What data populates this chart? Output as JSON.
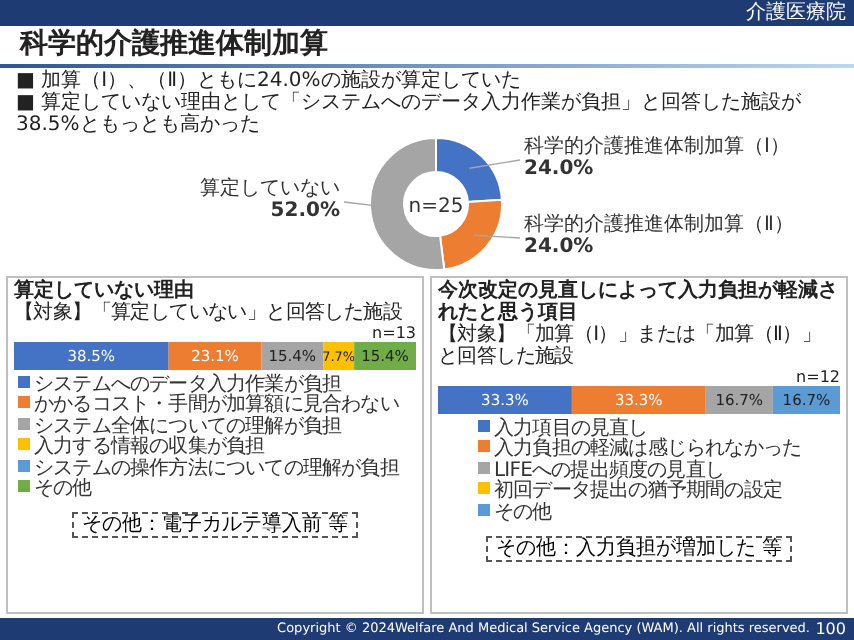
{
  "chart_data": [
    {
      "type": "donut",
      "title": "科学的介護推進体制加算",
      "annotations": [
        "介護医療院",
        "■ 加算（Ⅰ）、（Ⅱ）ともに24.0%の施設が算定していた",
        "■ 算定していない理由として「システムへのデータ入力作業が負担」と回答した施設が38.5%ともっとも高かった",
        "n=25",
        "Copyright © 2024Welfare And Medical Service Agency (WAM). All rights reserved.",
        "100"
      ],
      "categories": [
        "科学的介護推進体制加算（Ⅰ）",
        "科学的介護推進体制加算（Ⅱ）",
        "算定していない"
      ],
      "values": [
        24.0,
        24.0,
        52.0
      ],
      "value_labels": [
        "24.0%",
        "24.0%",
        "52.0%"
      ],
      "colors": [
        "#4472c4",
        "#ed7d31",
        "#a5a5a5"
      ]
    },
    {
      "type": "bar",
      "orientation": "horizontal",
      "stacked": true,
      "legend": "bottom",
      "title": "算定していない理由",
      "subtitle": "【対象】「算定していない」と回答した施設",
      "annotations": [
        "n=13",
        "その他：電子カルテ導入前 等"
      ],
      "categories": [
        null
      ],
      "series": [
        {
          "name": "システムへのデータ入力作業が負担",
          "color": "#4472c4",
          "values": [
            38.5
          ],
          "value_labels": [
            "38.5%"
          ]
        },
        {
          "name": "かかるコスト・手間が加算額に見合わない",
          "color": "#ed7d31",
          "values": [
            23.1
          ],
          "value_labels": [
            "23.1%"
          ]
        },
        {
          "name": "システム全体についての理解が負担",
          "color": "#a5a5a5",
          "values": [
            15.4
          ],
          "value_labels": [
            "15.4%"
          ]
        },
        {
          "name": "入力する情報の収集が負担",
          "color": "#ffc000",
          "values": [
            7.7
          ],
          "value_labels": [
            "7.7%"
          ]
        },
        {
          "name": "システムの操作方法についての理解が負担",
          "color": "#5b9bd5",
          "values": [
            0
          ],
          "value_labels": [
            null
          ]
        },
        {
          "name": "その他",
          "color": "#70ad47",
          "values": [
            15.4
          ],
          "value_labels": [
            "15.4%"
          ]
        }
      ]
    },
    {
      "type": "bar",
      "orientation": "horizontal",
      "stacked": true,
      "legend": "bottom",
      "title": "今次改定の見直しによって入力負担が軽減されたと思う項目",
      "subtitle": "【対象】「加算（Ⅰ）」または「加算（Ⅱ）」と回答した施設",
      "annotations": [
        "n=12",
        "その他：入力負担が増加した 等"
      ],
      "categories": [
        null
      ],
      "series": [
        {
          "name": "入力項目の見直し",
          "color": "#4472c4",
          "values": [
            33.3
          ],
          "value_labels": [
            "33.3%"
          ]
        },
        {
          "name": "入力負担の軽減は感じられなかった",
          "color": "#ed7d31",
          "values": [
            33.3
          ],
          "value_labels": [
            "33.3%"
          ]
        },
        {
          "name": "LIFEへの提出頻度の見直し",
          "color": "#a5a5a5",
          "values": [
            16.7
          ],
          "value_labels": [
            "16.7%"
          ]
        },
        {
          "name": "初回データ提出の猶予期間の設定",
          "color": "#ffc000",
          "values": [
            0
          ],
          "value_labels": [
            null
          ]
        },
        {
          "name": "その他",
          "color": "#5b9bd5",
          "values": [
            16.7
          ],
          "value_labels": [
            "16.7%"
          ]
        }
      ]
    }
  ]
}
